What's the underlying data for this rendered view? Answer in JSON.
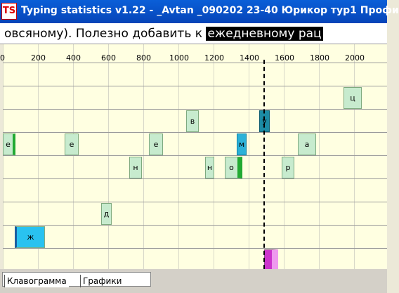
{
  "window": {
    "icon_text": "TS",
    "title": "Typing statistics v1.22 - _Avtan _090202 23-40 Юрикор тур1 Профи"
  },
  "text_line": {
    "before": "овсяному). Полезно добавить к ",
    "current": "ежедневному рац"
  },
  "ruler": [
    "0",
    "200",
    "400",
    "600",
    "800",
    "1000",
    "1200",
    "1400",
    "1600",
    "1800",
    "2000"
  ],
  "bars": [
    {
      "label": "ц",
      "color": "#c7ebce"
    },
    {
      "label": "в",
      "color": "#c7ebce"
    },
    {
      "label": "у",
      "color": "#1b8ba4"
    },
    {
      "label": "е",
      "color": "#c7ebce"
    },
    {
      "label": "е",
      "color": "#c7ebce"
    },
    {
      "label": "е",
      "color": "#c7ebce"
    },
    {
      "label": "м",
      "color": "#2bb1d8"
    },
    {
      "label": "а",
      "color": "#c7ebce"
    },
    {
      "label": "н",
      "color": "#c7ebce"
    },
    {
      "label": "н",
      "color": "#c7ebce"
    },
    {
      "label": "о",
      "color": "#c7ebce"
    },
    {
      "label": "р",
      "color": "#c7ebce"
    },
    {
      "label": "д",
      "color": "#c7ebce"
    },
    {
      "label": "ж",
      "color": "#29c2f0"
    },
    {
      "label": "",
      "color": "#cc33cc"
    }
  ],
  "tabs": [
    {
      "label": "Клавограмма"
    },
    {
      "label": "Графики"
    }
  ]
}
